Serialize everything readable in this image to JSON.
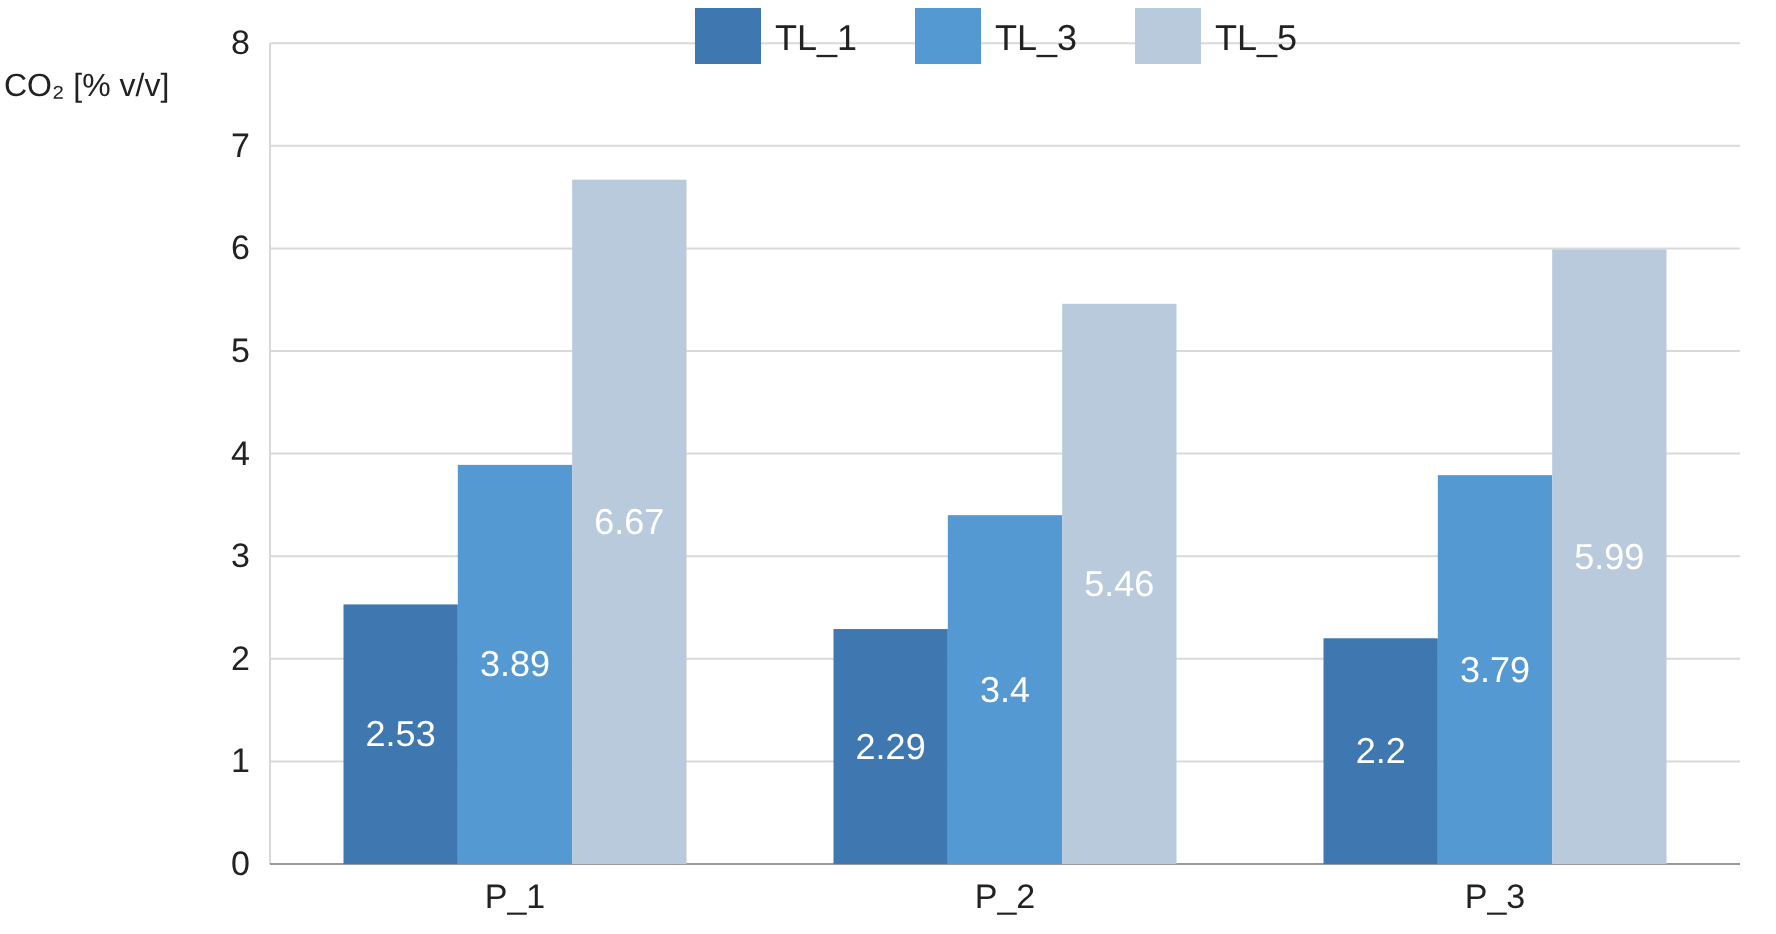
{
  "chart_data": {
    "type": "bar",
    "ylabel": "CO₂ [% v/v]",
    "categories": [
      "P_1",
      "P_2",
      "P_3"
    ],
    "series": [
      {
        "name": "TL_1",
        "color": "#3f78b0",
        "values": [
          2.53,
          2.29,
          2.2
        ]
      },
      {
        "name": "TL_3",
        "color": "#5499d1",
        "values": [
          3.89,
          3.4,
          3.79
        ]
      },
      {
        "name": "TL_5",
        "color": "#b9cadc",
        "values": [
          6.67,
          5.46,
          5.99
        ]
      }
    ],
    "ylim": [
      0,
      8
    ],
    "yticks": [
      0,
      1,
      2,
      3,
      4,
      5,
      6,
      7,
      8
    ],
    "grid": "y",
    "legend": "top",
    "data_labels": true
  }
}
